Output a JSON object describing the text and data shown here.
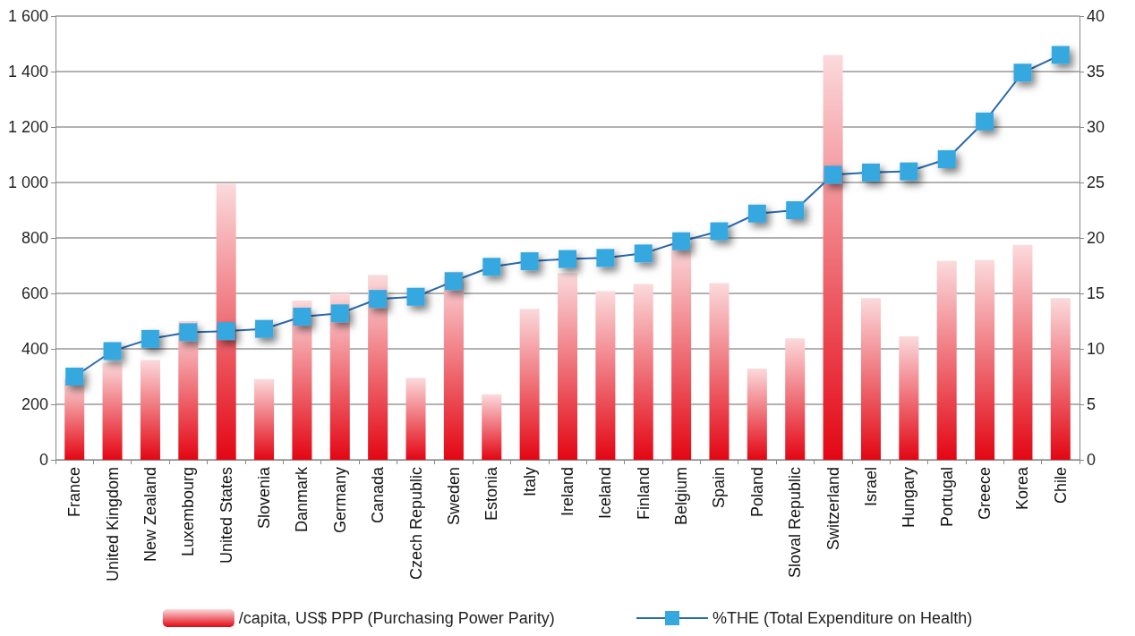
{
  "chart_data": {
    "type": "bar",
    "categories": [
      "France",
      "United Kingdom",
      "New Zealand",
      "Luxembourg",
      "United States",
      "Slovenia",
      "Danmark",
      "Germany",
      "Canada",
      "Czech Republic",
      "Sweden",
      "Estonia",
      "Italy",
      "Ireland",
      "Iceland",
      "Finland",
      "Belgium",
      "Spain",
      "Poland",
      "Sloval Republic",
      "Switzerland",
      "Israel",
      "Hungary",
      "Portugal",
      "Greece",
      "Korea",
      "Chile"
    ],
    "series": [
      {
        "name": "/capita, US$ PPP (Purchasing Power Parity)",
        "color": "#e30613",
        "values": [
          290,
          350,
          360,
          500,
          995,
          291,
          574,
          601,
          667,
          295,
          678,
          236,
          544,
          673,
          608,
          634,
          780,
          637,
          329,
          438,
          1460,
          583,
          445,
          717,
          720,
          775,
          583
        ]
      },
      {
        "name": "%THE (Total Expenditure on Health)",
        "type": "line",
        "axis": "y2",
        "color": "#35a8e0",
        "values": [
          7.5,
          9.8,
          10.9,
          11.5,
          11.6,
          11.8,
          12.9,
          13.2,
          14.5,
          14.7,
          16.1,
          17.4,
          17.9,
          18.1,
          18.2,
          18.6,
          19.7,
          20.6,
          22.2,
          22.5,
          25.7,
          25.9,
          26.0,
          27.1,
          30.5,
          34.9,
          36.5
        ]
      }
    ],
    "ylim": [
      0,
      1600
    ],
    "yticks": [
      0,
      200,
      400,
      600,
      800,
      {
        "value": 1000,
        "label": "1 000"
      },
      {
        "value": 1200,
        "label": "1 200"
      },
      {
        "value": 1400,
        "label": "1 400"
      },
      {
        "value": 1600,
        "label": "1 600"
      }
    ],
    "y2lim": [
      0,
      40
    ],
    "y2ticks": [
      0,
      5,
      10,
      15,
      20,
      25,
      30,
      35,
      40
    ],
    "grid": "y",
    "legend": "bottom",
    "marker": "square",
    "line_style": "solid"
  }
}
